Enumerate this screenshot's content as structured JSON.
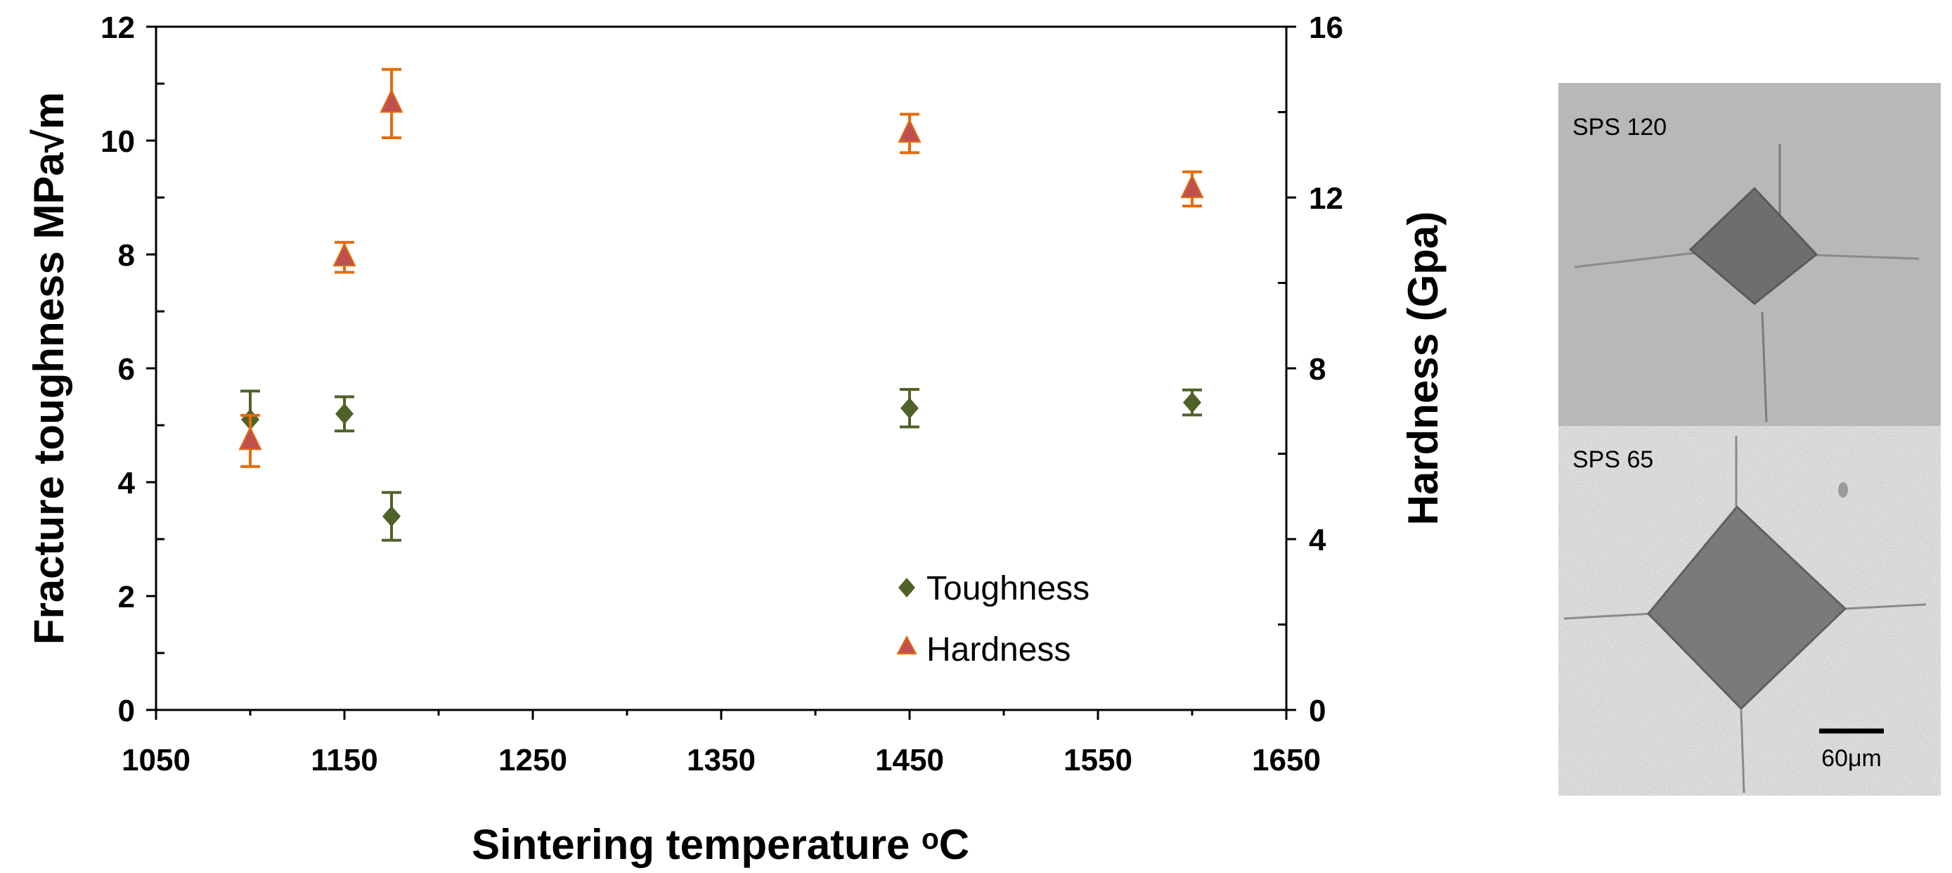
{
  "chart_data": {
    "type": "scatter",
    "xlabel": "Sintering temperature ᵒC",
    "ylabel": "Fracture toughness MPa√m",
    "ylabel_right": "Hardness (Gpa)",
    "xlim": [
      1050,
      1650
    ],
    "ylim": [
      0,
      12
    ],
    "ylim_right": [
      0,
      16
    ],
    "x_ticks": [
      1050,
      1150,
      1250,
      1350,
      1450,
      1550,
      1650
    ],
    "y_ticks": [
      0,
      2,
      4,
      6,
      8,
      10,
      12
    ],
    "y_ticks_right": [
      0,
      4,
      8,
      12,
      16
    ],
    "grid": false,
    "legend_position": "bottom-right",
    "series": [
      {
        "name": "Toughness",
        "axis": "left",
        "marker": "diamond",
        "color": "#4f6228",
        "x": [
          1100,
          1150,
          1175,
          1450,
          1600
        ],
        "y": [
          5.1,
          5.2,
          3.4,
          5.3,
          5.4
        ],
        "err": [
          0.5,
          0.3,
          0.42,
          0.33,
          0.22
        ]
      },
      {
        "name": "Hardness",
        "axis": "right",
        "marker": "triangle",
        "color": "#c0504d",
        "err_color": "#e46c0a",
        "x": [
          1100,
          1150,
          1175,
          1450,
          1600
        ],
        "y": [
          6.3,
          10.6,
          14.2,
          13.5,
          12.2
        ],
        "err": [
          0.6,
          0.35,
          0.8,
          0.45,
          0.4
        ]
      }
    ]
  },
  "micrographs": [
    {
      "label": "SPS 120"
    },
    {
      "label": "SPS 65",
      "scale_bar": "60μm"
    }
  ]
}
